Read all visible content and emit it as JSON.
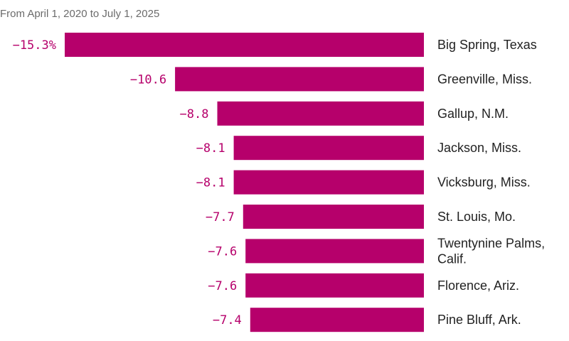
{
  "chart_data": {
    "type": "bar",
    "orientation": "horizontal",
    "subtitle": "From April 1, 2020 to July 1, 2025",
    "categories": [
      "Big Spring, Texas",
      "Greenville, Miss.",
      "Gallup, N.M.",
      "Jackson, Miss.",
      "Vicksburg, Miss.",
      "St. Louis, Mo.",
      "Twentynine Palms, Calif.",
      "Florence, Ariz.",
      "Pine Bluff, Ark."
    ],
    "category_lines": [
      [
        "Big Spring, Texas"
      ],
      [
        "Greenville, Miss."
      ],
      [
        "Gallup, N.M."
      ],
      [
        "Jackson, Miss."
      ],
      [
        "Vicksburg, Miss."
      ],
      [
        "St. Louis, Mo."
      ],
      [
        "Twentynine Palms,",
        "Calif."
      ],
      [
        "Florence, Ariz."
      ],
      [
        "Pine Bluff, Ark."
      ]
    ],
    "values": [
      -15.3,
      -10.6,
      -8.8,
      -8.1,
      -8.1,
      -7.7,
      -7.6,
      -7.6,
      -7.4
    ],
    "value_labels": [
      "−15.3%",
      "−10.6",
      "−8.8",
      "−8.1",
      "−8.1",
      "−7.7",
      "−7.6",
      "−7.6",
      "−7.4"
    ],
    "xlim": [
      -15.3,
      0
    ],
    "grid": false,
    "legend": "none",
    "colors": {
      "bar": "#b6006b",
      "value_label": "#b6006b",
      "category_label": "#222222",
      "subtitle": "#6b6b6b"
    }
  }
}
